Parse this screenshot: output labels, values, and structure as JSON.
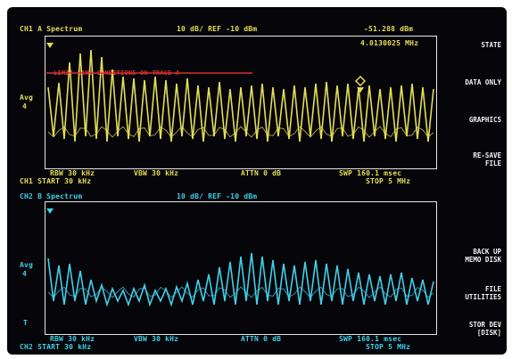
{
  "colors": {
    "trace_a": "#e6dd55",
    "trace_b": "#40d0e8",
    "frame": "#e8e8e8",
    "limit_line": "#d83030",
    "screen_bg": "#05050a"
  },
  "upper": {
    "channel_title": "CH1 A  Spectrum",
    "scale_ref": "10 dB/ REF -10 dBm",
    "marker_value": "-51.288 dBm",
    "marker_freq": "4.0130025 MHz",
    "limit_label": "LIMIT LINE  CONDITIONS  ON  TRACE  A",
    "avg_label": "Avg",
    "avg_count": "4",
    "rbw": "RBW  30 kHz",
    "vbw": "VBW  30 kHz",
    "atten": "ATTN 0 dB",
    "sweep": "SWP  160.1 msec",
    "start": "CH1 START   30 kHz",
    "stop": "STOP   5 MHz"
  },
  "lower": {
    "channel_title": "CH2 B  Spectrum",
    "scale_ref": "10 dB/ REF -10 dBm",
    "avg_label": "Avg",
    "avg_count": "4",
    "bottom_marker": "T",
    "rbw": "RBW  30 kHz",
    "vbw": "VBW  30 kHz",
    "atten": "ATTN 0 dB",
    "sweep": "SWP  160.1 msec",
    "start": "CH2 START   30 kHz",
    "stop": "STOP   5 MHz"
  },
  "softkeys": {
    "state": "STATE",
    "data_only": "DATA ONLY",
    "graphics": "GRAPHICS",
    "resave_line1": "RE-SAVE",
    "resave_line2": "FILE",
    "backup_line1": "BACK UP",
    "backup_line2": "MEMO DISK",
    "file_util_line1": "FILE",
    "file_util_line2": "UTILITIES",
    "store_dev_line1": "STOR DEV",
    "store_dev_line2": "[DISK]"
  }
}
